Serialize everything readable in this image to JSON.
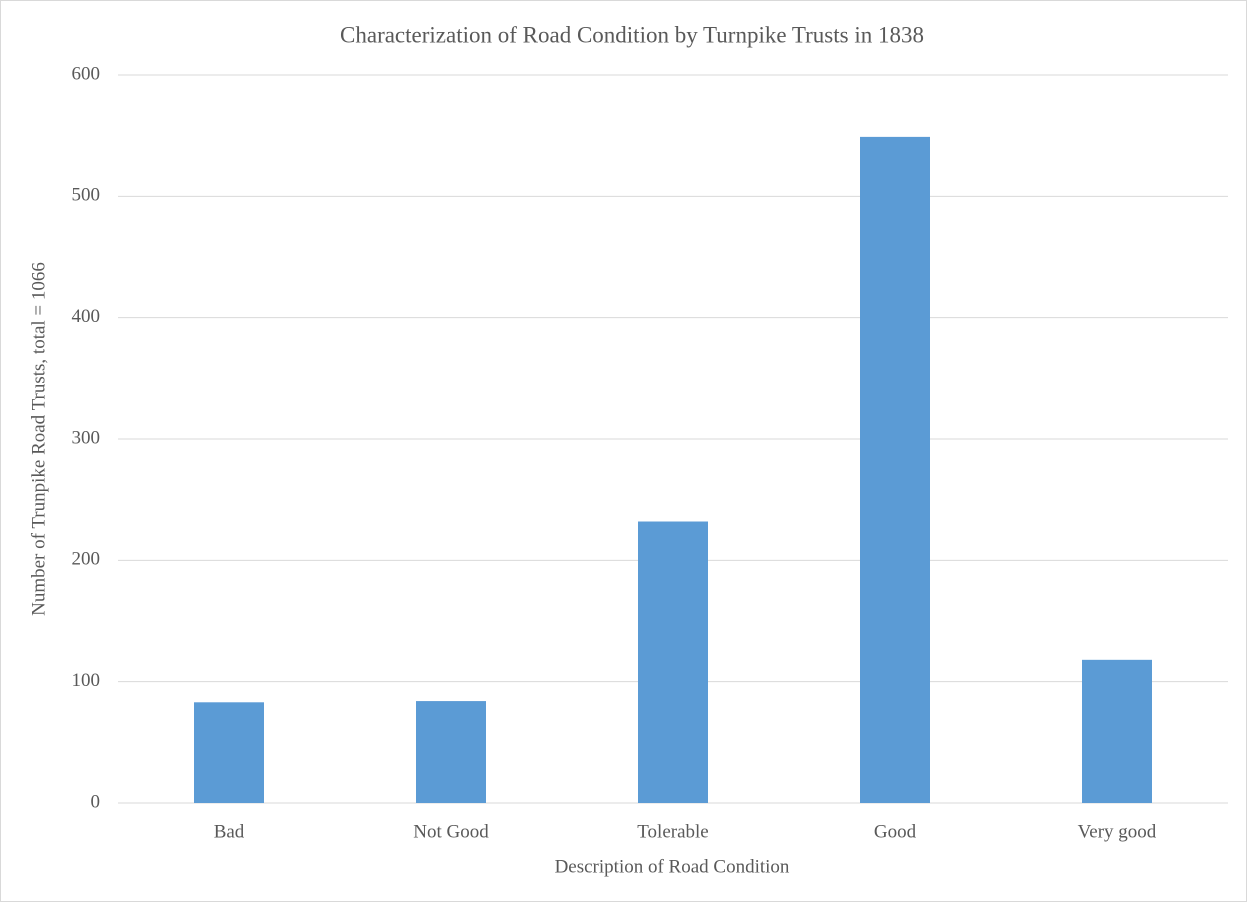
{
  "chart_data": {
    "type": "bar",
    "title": "Characterization of Road Condition by Turnpike Trusts in 1838",
    "x_label": "Description of Road Condition",
    "y_label": "Number of Trunpike Road Trusts, total = 1066",
    "categories": [
      "Bad",
      "Not Good",
      "Tolerable",
      "Good",
      "Very good"
    ],
    "values": [
      83,
      84,
      232,
      549,
      118
    ],
    "color": "#5b9bd5",
    "ylim": [
      0,
      600
    ],
    "yticks": [
      0,
      100,
      200,
      300,
      400,
      500,
      600
    ],
    "grid": true
  }
}
